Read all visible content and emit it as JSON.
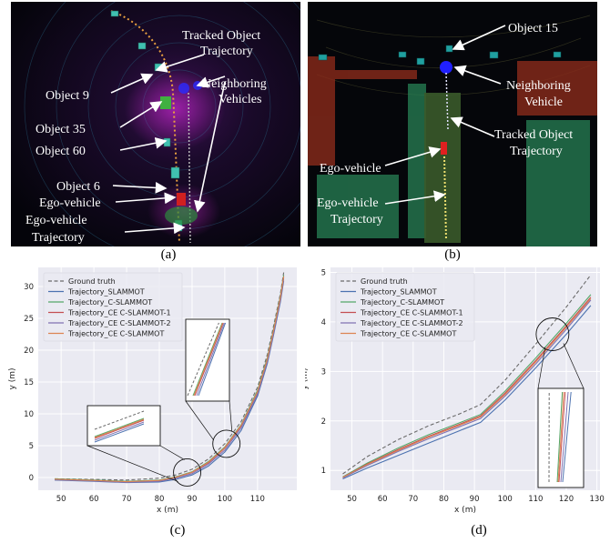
{
  "panels": {
    "a": {
      "label": "(a)",
      "annotations": {
        "tracked_traj_1": "Tracked Object",
        "tracked_traj_2": "Trajectory",
        "neighboring_1": "Neighboring",
        "neighboring_2": "Vehicles",
        "object9": "Object 9",
        "object35": "Object 35",
        "object60": "Object 60",
        "object6": "Object 6",
        "ego": "Ego-vehicle",
        "ego_traj_1": "Ego-vehicle",
        "ego_traj_2": "Trajectory"
      }
    },
    "b": {
      "label": "(b)",
      "annotations": {
        "object15": "Object 15",
        "neighboring_1": "Neighboring",
        "neighboring_2": "Vehicle",
        "tracked_traj_1": "Tracked Object",
        "tracked_traj_2": "Trajectory",
        "ego": "Ego-vehicle",
        "ego_traj_1": "Ego-vehicle",
        "ego_traj_2": "Trajectory"
      }
    },
    "c": {
      "label": "(c)"
    },
    "d": {
      "label": "(d)"
    }
  },
  "colors": {
    "ground_truth": "#6b6b6b",
    "slammot": "#4c72b0",
    "c_slammot": "#55a868",
    "ce1": "#c44e52",
    "ce2": "#8172b2",
    "ce": "#dd8452",
    "plot_bg": "#eaeaf2",
    "grid": "#ffffff"
  },
  "chart_data": [
    {
      "type": "line",
      "panel": "c",
      "xlabel": "x (m)",
      "ylabel": "y (m)",
      "xlim": [
        43,
        122
      ],
      "ylim": [
        -2,
        33
      ],
      "xticks": [
        50,
        60,
        70,
        80,
        90,
        100,
        110
      ],
      "yticks": [
        0,
        5,
        10,
        15,
        20,
        25,
        30
      ],
      "grid": true,
      "legend_position": "top-left",
      "series": [
        {
          "name": "Ground truth",
          "style": "dashed",
          "x": [
            48,
            60,
            70,
            80,
            85,
            90,
            95,
            100,
            105,
            110,
            113,
            115,
            117,
            118
          ],
          "y": [
            -0.2,
            -0.3,
            -0.4,
            -0.1,
            0.4,
            1.3,
            2.9,
            5.3,
            8.8,
            14.2,
            19.3,
            24.0,
            28.9,
            32.2
          ]
        },
        {
          "name": "Trajectory_SLAMMOT",
          "style": "solid",
          "x": [
            48,
            60,
            70,
            80,
            85,
            90,
            95,
            100,
            105,
            110,
            113,
            115,
            117,
            118
          ],
          "y": [
            -0.4,
            -0.6,
            -0.8,
            -0.7,
            -0.3,
            0.4,
            1.8,
            4.0,
            7.4,
            12.8,
            17.9,
            22.6,
            27.6,
            30.9
          ]
        },
        {
          "name": "Trajectory_C-SLAMMOT",
          "style": "solid",
          "x": [
            48,
            60,
            70,
            80,
            85,
            90,
            95,
            100,
            105,
            110,
            113,
            115,
            117,
            118
          ],
          "y": [
            -0.2,
            -0.4,
            -0.6,
            -0.4,
            0.1,
            0.9,
            2.5,
            4.8,
            8.3,
            13.7,
            18.8,
            23.5,
            28.5,
            31.8
          ]
        },
        {
          "name": "Trajectory_CE C-SLAMMOT-1",
          "style": "solid",
          "x": [
            48,
            60,
            70,
            80,
            85,
            90,
            95,
            100,
            105,
            110,
            113,
            115,
            117,
            118
          ],
          "y": [
            -0.3,
            -0.5,
            -0.7,
            -0.5,
            0.0,
            0.8,
            2.3,
            4.6,
            8.1,
            13.4,
            18.5,
            23.2,
            28.2,
            31.5
          ]
        },
        {
          "name": "Trajectory_CE C-SLAMMOT-2",
          "style": "solid",
          "x": [
            48,
            60,
            70,
            80,
            85,
            90,
            95,
            100,
            105,
            110,
            113,
            115,
            117,
            118
          ],
          "y": [
            -0.35,
            -0.55,
            -0.75,
            -0.6,
            -0.1,
            0.6,
            2.1,
            4.3,
            7.8,
            13.1,
            18.2,
            22.9,
            27.9,
            31.2
          ]
        },
        {
          "name": "Trajectory_CE C-SLAMMOT",
          "style": "solid",
          "x": [
            48,
            60,
            70,
            80,
            85,
            90,
            95,
            100,
            105,
            110,
            113,
            115,
            117,
            118
          ],
          "y": [
            -0.25,
            -0.45,
            -0.65,
            -0.45,
            0.05,
            0.85,
            2.4,
            4.7,
            8.2,
            13.5,
            18.6,
            23.3,
            28.3,
            31.6
          ]
        }
      ]
    },
    {
      "type": "line",
      "panel": "d",
      "xlabel": "x (m)",
      "ylabel": "y (m)",
      "xlim": [
        43,
        131
      ],
      "ylim": [
        0.6,
        5.1
      ],
      "xticks": [
        50,
        60,
        70,
        80,
        90,
        100,
        110,
        120,
        130
      ],
      "yticks": [
        1,
        2,
        3,
        4,
        5
      ],
      "grid": true,
      "legend_position": "top-left",
      "series": [
        {
          "name": "Ground truth",
          "style": "dashed",
          "x": [
            47,
            55,
            65,
            75,
            85,
            92,
            100,
            110,
            120,
            128
          ],
          "y": [
            0.93,
            1.28,
            1.62,
            1.9,
            2.14,
            2.33,
            2.82,
            3.55,
            4.3,
            4.95
          ]
        },
        {
          "name": "Trajectory_SLAMMOT",
          "style": "solid",
          "x": [
            47,
            55,
            65,
            75,
            85,
            92,
            100,
            110,
            120,
            128
          ],
          "y": [
            0.83,
            1.05,
            1.3,
            1.55,
            1.8,
            1.97,
            2.42,
            3.07,
            3.75,
            4.33
          ]
        },
        {
          "name": "Trajectory_C-SLAMMOT",
          "style": "solid",
          "x": [
            47,
            55,
            65,
            75,
            85,
            92,
            100,
            110,
            120,
            128
          ],
          "y": [
            0.87,
            1.15,
            1.45,
            1.72,
            1.96,
            2.13,
            2.6,
            3.27,
            3.97,
            4.55
          ]
        },
        {
          "name": "Trajectory_CE C-SLAMMOT-1",
          "style": "solid",
          "x": [
            47,
            55,
            65,
            75,
            85,
            92,
            100,
            110,
            120,
            128
          ],
          "y": [
            0.86,
            1.13,
            1.42,
            1.69,
            1.93,
            2.1,
            2.56,
            3.22,
            3.92,
            4.5
          ]
        },
        {
          "name": "Trajectory_CE C-SLAMMOT-2",
          "style": "solid",
          "x": [
            47,
            55,
            65,
            75,
            85,
            92,
            100,
            110,
            120,
            128
          ],
          "y": [
            0.85,
            1.1,
            1.38,
            1.64,
            1.88,
            2.05,
            2.5,
            3.15,
            3.85,
            4.44
          ]
        },
        {
          "name": "Trajectory_CE C-SLAMMOT",
          "style": "solid",
          "x": [
            47,
            55,
            65,
            75,
            85,
            92,
            100,
            110,
            120,
            128
          ],
          "y": [
            0.86,
            1.12,
            1.4,
            1.67,
            1.91,
            2.08,
            2.53,
            3.19,
            3.89,
            4.47
          ]
        }
      ]
    }
  ]
}
